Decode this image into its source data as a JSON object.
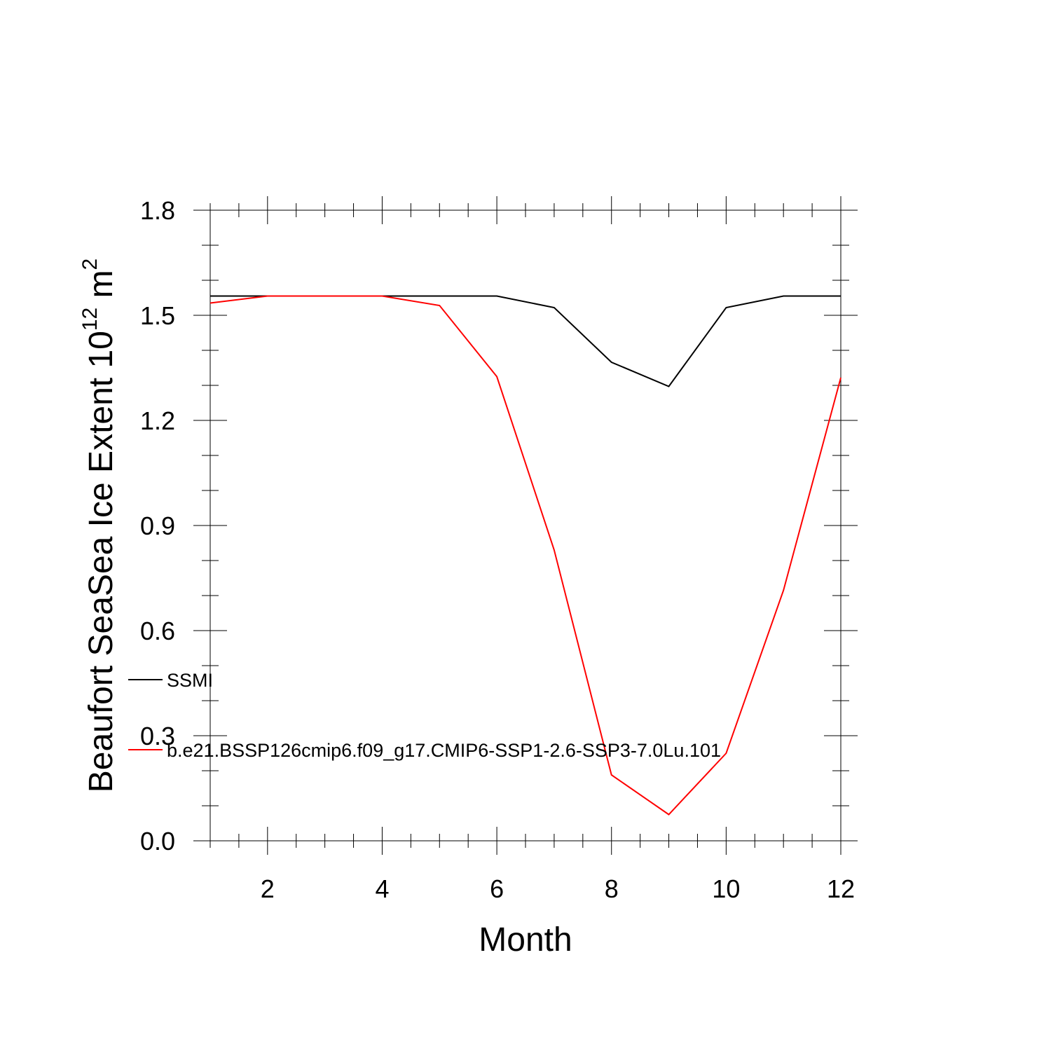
{
  "chart_data": {
    "type": "line",
    "xlabel": "Month",
    "ylabel": "Beaufort SeaSea Ice Extent 10",
    "ylabel_sup": "12",
    "ylabel_unit": " m",
    "ylabel_unit_sup": "2",
    "xlim": [
      1,
      12
    ],
    "ylim": [
      0.0,
      1.8
    ],
    "xticks": [
      2,
      4,
      6,
      8,
      10,
      12
    ],
    "xtick_labels": [
      "2",
      "4",
      "6",
      "8",
      "10",
      "12"
    ],
    "yticks": [
      0.0,
      0.3,
      0.6,
      0.9,
      1.2,
      1.5,
      1.8
    ],
    "ytick_labels": [
      "0.0",
      "0.3",
      "0.6",
      "0.9",
      "1.2",
      "1.5",
      "1.8"
    ],
    "grid": false,
    "legend_position": "left-inside",
    "x": [
      1,
      2,
      3,
      4,
      5,
      6,
      7,
      8,
      9,
      10,
      11,
      12
    ],
    "series": [
      {
        "name": "SSMI",
        "color": "#000000",
        "values": [
          1.555,
          1.555,
          1.555,
          1.555,
          1.555,
          1.555,
          1.522,
          1.366,
          1.297,
          1.522,
          1.555,
          1.555
        ]
      },
      {
        "name": "b.e21.BSSP126cmip6.f09_g17.CMIP6-SSP1-2.6-SSP3-7.0Lu.101",
        "color": "#ff0000",
        "values": [
          1.535,
          1.555,
          1.555,
          1.555,
          1.528,
          1.325,
          0.83,
          0.188,
          0.075,
          0.25,
          0.715,
          1.322
        ]
      }
    ]
  }
}
